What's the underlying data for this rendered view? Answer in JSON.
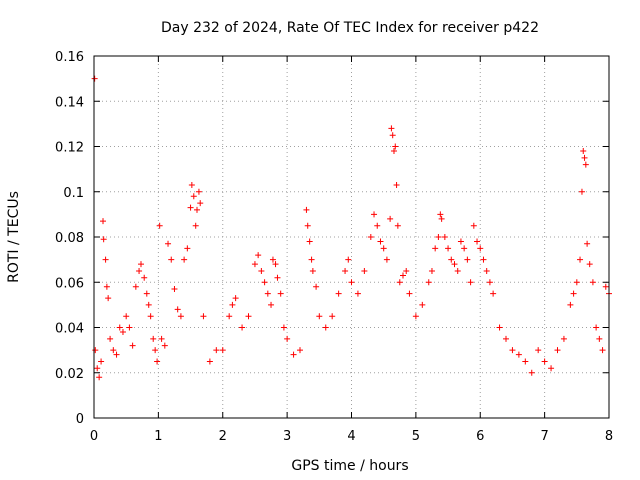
{
  "chart_data": {
    "type": "scatter",
    "title": "Day 232 of 2024, Rate Of TEC Index for receiver p422",
    "xlabel": "GPS time / hours",
    "ylabel": "ROTI / TECUs",
    "xlim": [
      0,
      8
    ],
    "ylim": [
      0,
      0.16
    ],
    "xticks": [
      0,
      1,
      2,
      3,
      4,
      5,
      6,
      7,
      8
    ],
    "yticks": [
      0,
      0.02,
      0.04,
      0.06,
      0.08,
      0.1,
      0.12,
      0.14,
      0.16
    ],
    "xtick_labels": [
      "0",
      "1",
      "2",
      "3",
      "4",
      "5",
      "6",
      "7",
      "8"
    ],
    "ytick_labels": [
      "0",
      "0.02",
      "0.04",
      "0.06",
      "0.08",
      "0.1",
      "0.12",
      "0.14",
      "0.16"
    ],
    "grid": true,
    "marker": "+",
    "color": "#ff0000",
    "series": [
      {
        "name": "ROTI",
        "points": [
          [
            0.01,
            0.15
          ],
          [
            0.02,
            0.03
          ],
          [
            0.05,
            0.022
          ],
          [
            0.08,
            0.018
          ],
          [
            0.11,
            0.025
          ],
          [
            0.14,
            0.087
          ],
          [
            0.15,
            0.079
          ],
          [
            0.18,
            0.07
          ],
          [
            0.2,
            0.058
          ],
          [
            0.22,
            0.053
          ],
          [
            0.25,
            0.035
          ],
          [
            0.3,
            0.03
          ],
          [
            0.35,
            0.028
          ],
          [
            0.4,
            0.04
          ],
          [
            0.45,
            0.038
          ],
          [
            0.5,
            0.045
          ],
          [
            0.55,
            0.04
          ],
          [
            0.6,
            0.032
          ],
          [
            0.65,
            0.058
          ],
          [
            0.7,
            0.065
          ],
          [
            0.73,
            0.068
          ],
          [
            0.78,
            0.062
          ],
          [
            0.82,
            0.055
          ],
          [
            0.85,
            0.05
          ],
          [
            0.88,
            0.045
          ],
          [
            0.92,
            0.035
          ],
          [
            0.95,
            0.03
          ],
          [
            0.98,
            0.025
          ],
          [
            1.02,
            0.085
          ],
          [
            1.05,
            0.035
          ],
          [
            1.1,
            0.032
          ],
          [
            1.15,
            0.077
          ],
          [
            1.2,
            0.07
          ],
          [
            1.25,
            0.057
          ],
          [
            1.3,
            0.048
          ],
          [
            1.35,
            0.045
          ],
          [
            1.4,
            0.07
          ],
          [
            1.45,
            0.075
          ],
          [
            1.5,
            0.093
          ],
          [
            1.52,
            0.103
          ],
          [
            1.55,
            0.098
          ],
          [
            1.58,
            0.085
          ],
          [
            1.6,
            0.092
          ],
          [
            1.63,
            0.1
          ],
          [
            1.65,
            0.095
          ],
          [
            1.7,
            0.045
          ],
          [
            1.8,
            0.025
          ],
          [
            1.9,
            0.03
          ],
          [
            2.0,
            0.03
          ],
          [
            2.1,
            0.045
          ],
          [
            2.15,
            0.05
          ],
          [
            2.2,
            0.053
          ],
          [
            2.3,
            0.04
          ],
          [
            2.4,
            0.045
          ],
          [
            2.5,
            0.068
          ],
          [
            2.55,
            0.072
          ],
          [
            2.6,
            0.065
          ],
          [
            2.65,
            0.06
          ],
          [
            2.7,
            0.055
          ],
          [
            2.75,
            0.05
          ],
          [
            2.78,
            0.07
          ],
          [
            2.82,
            0.068
          ],
          [
            2.85,
            0.062
          ],
          [
            2.9,
            0.055
          ],
          [
            2.95,
            0.04
          ],
          [
            3.0,
            0.035
          ],
          [
            3.1,
            0.028
          ],
          [
            3.2,
            0.03
          ],
          [
            3.3,
            0.092
          ],
          [
            3.32,
            0.085
          ],
          [
            3.35,
            0.078
          ],
          [
            3.38,
            0.07
          ],
          [
            3.4,
            0.065
          ],
          [
            3.45,
            0.058
          ],
          [
            3.5,
            0.045
          ],
          [
            3.6,
            0.04
          ],
          [
            3.7,
            0.045
          ],
          [
            3.8,
            0.055
          ],
          [
            3.9,
            0.065
          ],
          [
            3.95,
            0.07
          ],
          [
            4.0,
            0.06
          ],
          [
            4.1,
            0.055
          ],
          [
            4.2,
            0.065
          ],
          [
            4.3,
            0.08
          ],
          [
            4.35,
            0.09
          ],
          [
            4.4,
            0.085
          ],
          [
            4.45,
            0.078
          ],
          [
            4.5,
            0.075
          ],
          [
            4.55,
            0.07
          ],
          [
            4.6,
            0.088
          ],
          [
            4.62,
            0.128
          ],
          [
            4.64,
            0.125
          ],
          [
            4.66,
            0.118
          ],
          [
            4.68,
            0.12
          ],
          [
            4.7,
            0.103
          ],
          [
            4.72,
            0.085
          ],
          [
            4.75,
            0.06
          ],
          [
            4.8,
            0.063
          ],
          [
            4.85,
            0.065
          ],
          [
            4.9,
            0.055
          ],
          [
            5.0,
            0.045
          ],
          [
            5.1,
            0.05
          ],
          [
            5.2,
            0.06
          ],
          [
            5.25,
            0.065
          ],
          [
            5.3,
            0.075
          ],
          [
            5.35,
            0.08
          ],
          [
            5.38,
            0.09
          ],
          [
            5.4,
            0.088
          ],
          [
            5.45,
            0.08
          ],
          [
            5.5,
            0.075
          ],
          [
            5.55,
            0.07
          ],
          [
            5.6,
            0.068
          ],
          [
            5.65,
            0.065
          ],
          [
            5.7,
            0.078
          ],
          [
            5.75,
            0.075
          ],
          [
            5.8,
            0.07
          ],
          [
            5.85,
            0.06
          ],
          [
            5.9,
            0.085
          ],
          [
            5.95,
            0.078
          ],
          [
            6.0,
            0.075
          ],
          [
            6.05,
            0.07
          ],
          [
            6.1,
            0.065
          ],
          [
            6.15,
            0.06
          ],
          [
            6.2,
            0.055
          ],
          [
            6.3,
            0.04
          ],
          [
            6.4,
            0.035
          ],
          [
            6.5,
            0.03
          ],
          [
            6.6,
            0.028
          ],
          [
            6.7,
            0.025
          ],
          [
            6.8,
            0.02
          ],
          [
            6.9,
            0.03
          ],
          [
            7.0,
            0.025
          ],
          [
            7.1,
            0.022
          ],
          [
            7.2,
            0.03
          ],
          [
            7.3,
            0.035
          ],
          [
            7.4,
            0.05
          ],
          [
            7.45,
            0.055
          ],
          [
            7.5,
            0.06
          ],
          [
            7.55,
            0.07
          ],
          [
            7.58,
            0.1
          ],
          [
            7.6,
            0.118
          ],
          [
            7.62,
            0.115
          ],
          [
            7.64,
            0.112
          ],
          [
            7.66,
            0.077
          ],
          [
            7.7,
            0.068
          ],
          [
            7.75,
            0.06
          ],
          [
            7.8,
            0.04
          ],
          [
            7.85,
            0.035
          ],
          [
            7.9,
            0.03
          ],
          [
            7.95,
            0.058
          ],
          [
            8.0,
            0.055
          ]
        ]
      }
    ]
  }
}
